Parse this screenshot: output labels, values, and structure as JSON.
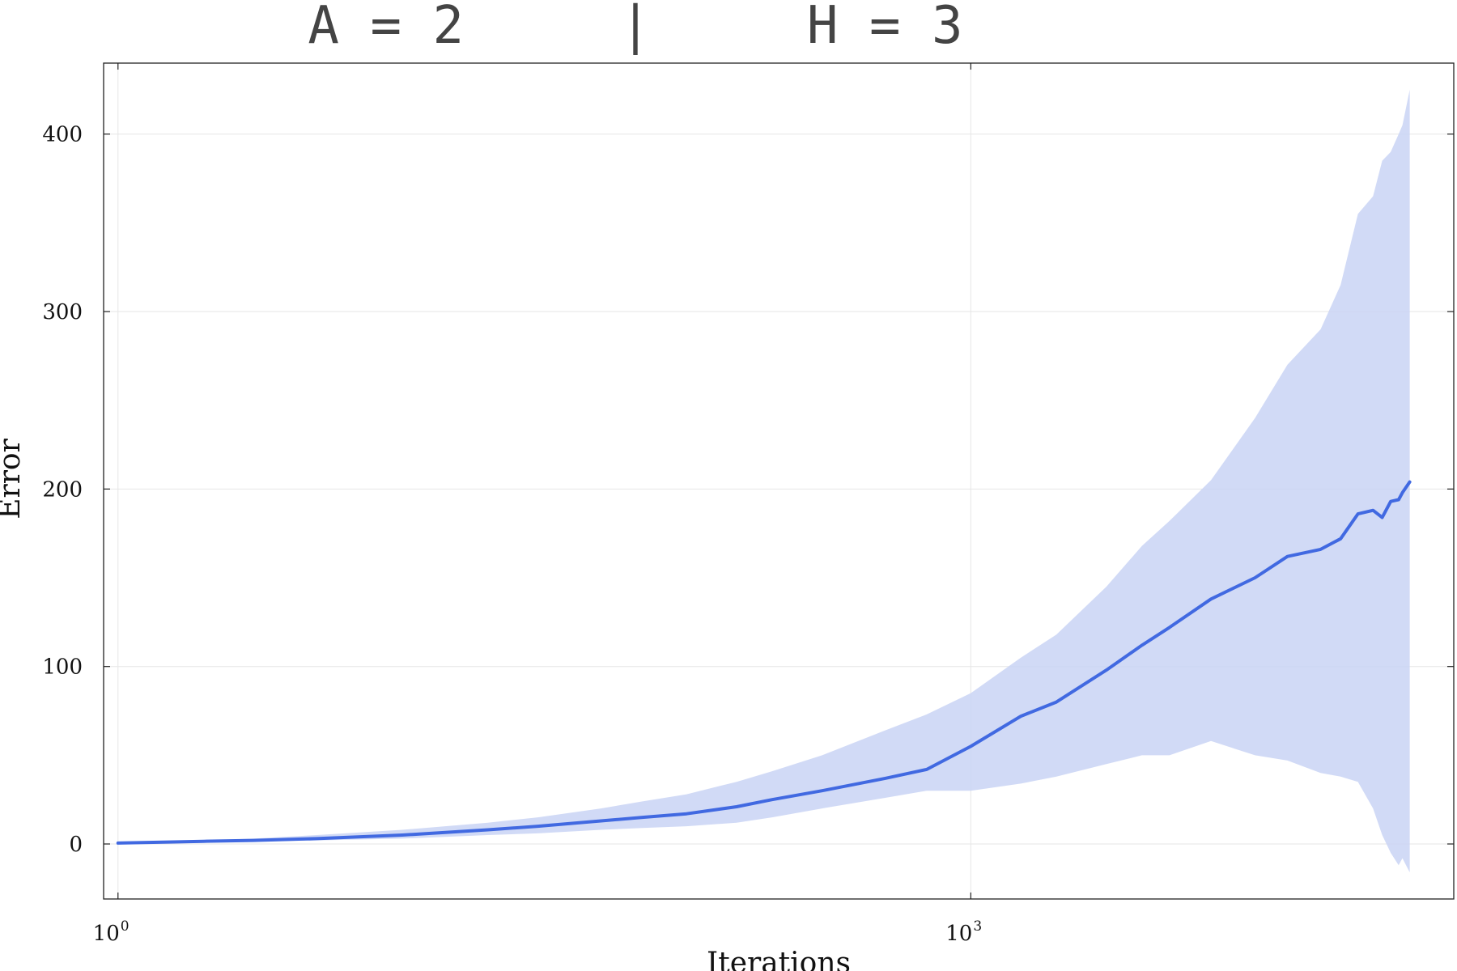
{
  "chart_data": {
    "type": "line",
    "title": "A = 2     |     H = 3",
    "xlabel": "Iterations",
    "ylabel": "Error",
    "x_scale": "log10",
    "xlim": [
      0.89,
      50000
    ],
    "ylim": [
      -31,
      440
    ],
    "x_ticks": [
      {
        "value": 1,
        "base": "10",
        "exp": "0"
      },
      {
        "value": 1000,
        "base": "10",
        "exp": "3"
      }
    ],
    "y_ticks": [
      0,
      100,
      200,
      300,
      400
    ],
    "grid": true,
    "legend": "none",
    "colors": {
      "line": "#4169e1",
      "band": "#c9d4f4"
    },
    "series": [
      {
        "x": [
          1,
          2,
          3,
          5,
          10,
          20,
          30,
          50,
          70,
          100,
          150,
          200,
          300,
          500,
          700,
          1000,
          1500,
          2000,
          3000,
          4000,
          5000,
          7000,
          10000,
          13000,
          17000,
          20000,
          23000,
          26000,
          28000,
          30000,
          32000,
          33000,
          35000
        ],
        "y": [
          0.5,
          1.5,
          2,
          3,
          5,
          8,
          10,
          13,
          15,
          17,
          21,
          25,
          30,
          37,
          42,
          55,
          72,
          80,
          98,
          112,
          122,
          138,
          150,
          162,
          166,
          172,
          186,
          188,
          184,
          193,
          194,
          198,
          204
        ],
        "band_upper": [
          0.5,
          2,
          3,
          5,
          8,
          12,
          15,
          20,
          24,
          28,
          35,
          41,
          50,
          64,
          73,
          85,
          105,
          118,
          145,
          168,
          182,
          205,
          240,
          270,
          290,
          315,
          355,
          365,
          385,
          390,
          400,
          405,
          425
        ],
        "band_lower": [
          0.5,
          1,
          1.5,
          2,
          3,
          5,
          6,
          8,
          9,
          10,
          12,
          15,
          20,
          26,
          30,
          30,
          34,
          38,
          45,
          50,
          50,
          58,
          50,
          47,
          40,
          38,
          35,
          20,
          5,
          -5,
          -12,
          -8,
          -16
        ]
      }
    ]
  }
}
